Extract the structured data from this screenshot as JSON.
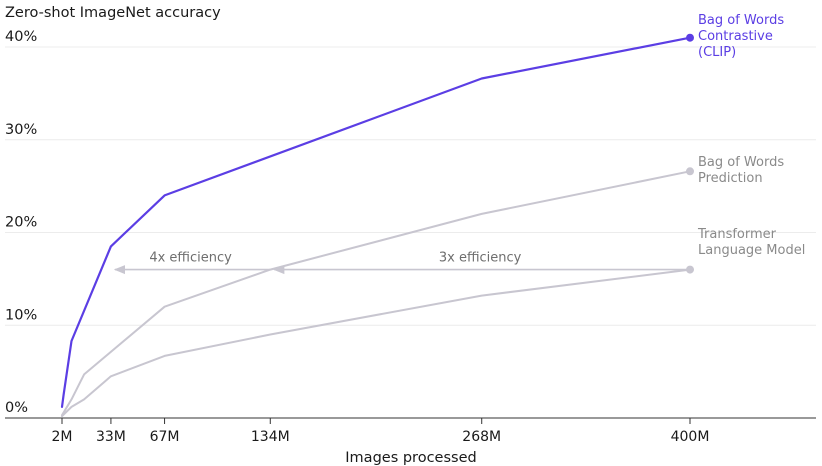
{
  "chart_data": {
    "type": "line",
    "title": "",
    "ylabel": "Zero-shot ImageNet accuracy",
    "xlabel": "Images processed",
    "ylim": [
      0,
      40
    ],
    "xlim": [
      0,
      400
    ],
    "y_ticks": [
      {
        "value": 0,
        "label": "0%"
      },
      {
        "value": 10,
        "label": "10%"
      },
      {
        "value": 20,
        "label": "20%"
      },
      {
        "value": 30,
        "label": "30%"
      },
      {
        "value": 40,
        "label": "40%"
      }
    ],
    "x_ticks": [
      {
        "value": 2,
        "label": "2M"
      },
      {
        "value": 33,
        "label": "33M"
      },
      {
        "value": 67,
        "label": "67M"
      },
      {
        "value": 134,
        "label": "134M"
      },
      {
        "value": 268,
        "label": "268M"
      },
      {
        "value": 400,
        "label": "400M"
      }
    ],
    "grid": true,
    "series": [
      {
        "name": "Bag of Words Contrastive (CLIP)",
        "label_lines": [
          "Bag of Words",
          "Contrastive",
          "(CLIP)"
        ],
        "color": "#5b3ee4",
        "points": [
          [
            2,
            1.2
          ],
          [
            3,
            2.5
          ],
          [
            8,
            8.3
          ],
          [
            33,
            18.5
          ],
          [
            67,
            24
          ],
          [
            268,
            36.6
          ],
          [
            400,
            41
          ]
        ]
      },
      {
        "name": "Bag of Words Prediction",
        "label_lines": [
          "Bag of Words",
          "Prediction"
        ],
        "color": "#c8c6d0",
        "points": [
          [
            2,
            0.3
          ],
          [
            8,
            2
          ],
          [
            16,
            4.7
          ],
          [
            67,
            12
          ],
          [
            134,
            16
          ],
          [
            268,
            22
          ],
          [
            400,
            26.6
          ]
        ]
      },
      {
        "name": "Transformer Language Model",
        "label_lines": [
          "Transformer",
          "Language Model"
        ],
        "color": "#c8c6d0",
        "points": [
          [
            2,
            0.2
          ],
          [
            8,
            1.2
          ],
          [
            16,
            2
          ],
          [
            33,
            4.5
          ],
          [
            67,
            6.7
          ],
          [
            134,
            9
          ],
          [
            268,
            13.2
          ],
          [
            400,
            16
          ]
        ]
      }
    ],
    "annotations": [
      {
        "text": "4x efficiency",
        "from": [
          134,
          16
        ],
        "to": [
          33,
          16
        ]
      },
      {
        "text": "3x efficiency",
        "from": [
          400,
          16
        ],
        "to": [
          134,
          16
        ]
      }
    ]
  }
}
